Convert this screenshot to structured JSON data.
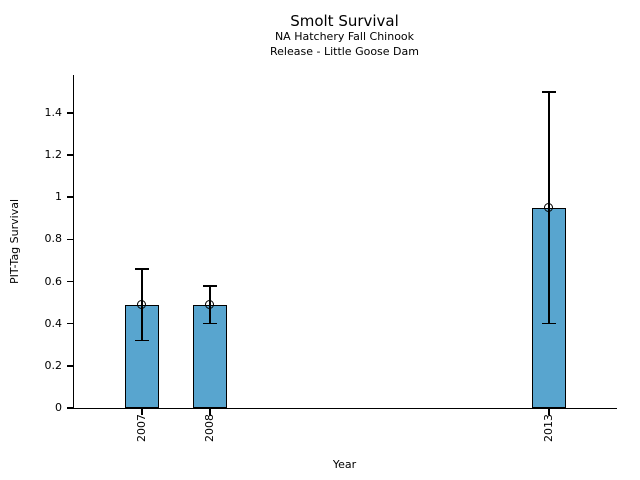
{
  "chart_data": {
    "type": "bar",
    "title": "Smolt Survival",
    "subtitle_lines": [
      "NA Hatchery Fall Chinook",
      "Release - Little Goose Dam"
    ],
    "xlabel": "Year",
    "ylabel": "PIT-Tag Survival",
    "categories": [
      "2007",
      "2008",
      "2013"
    ],
    "x_values": [
      2007,
      2008,
      2013
    ],
    "values": [
      0.49,
      0.49,
      0.95
    ],
    "error_low": [
      0.32,
      0.4,
      0.4
    ],
    "error_high": [
      0.66,
      0.58,
      1.5
    ],
    "marker": "open-circle",
    "bar_color": "#58A5CF",
    "bar_edge_color": "#000000",
    "error_color": "#000000",
    "xlim": [
      2006,
      2014
    ],
    "ylim": [
      0,
      1.58
    ],
    "bar_width_years": 0.5,
    "yticks": [
      0,
      0.2,
      0.4,
      0.6,
      0.8,
      1,
      1.2,
      1.4
    ],
    "ytick_labels": [
      "0",
      "0.2",
      "0.4",
      "0.6",
      "0.8",
      "1",
      "1.2",
      "1.4"
    ],
    "grid": false,
    "legend": "none"
  }
}
